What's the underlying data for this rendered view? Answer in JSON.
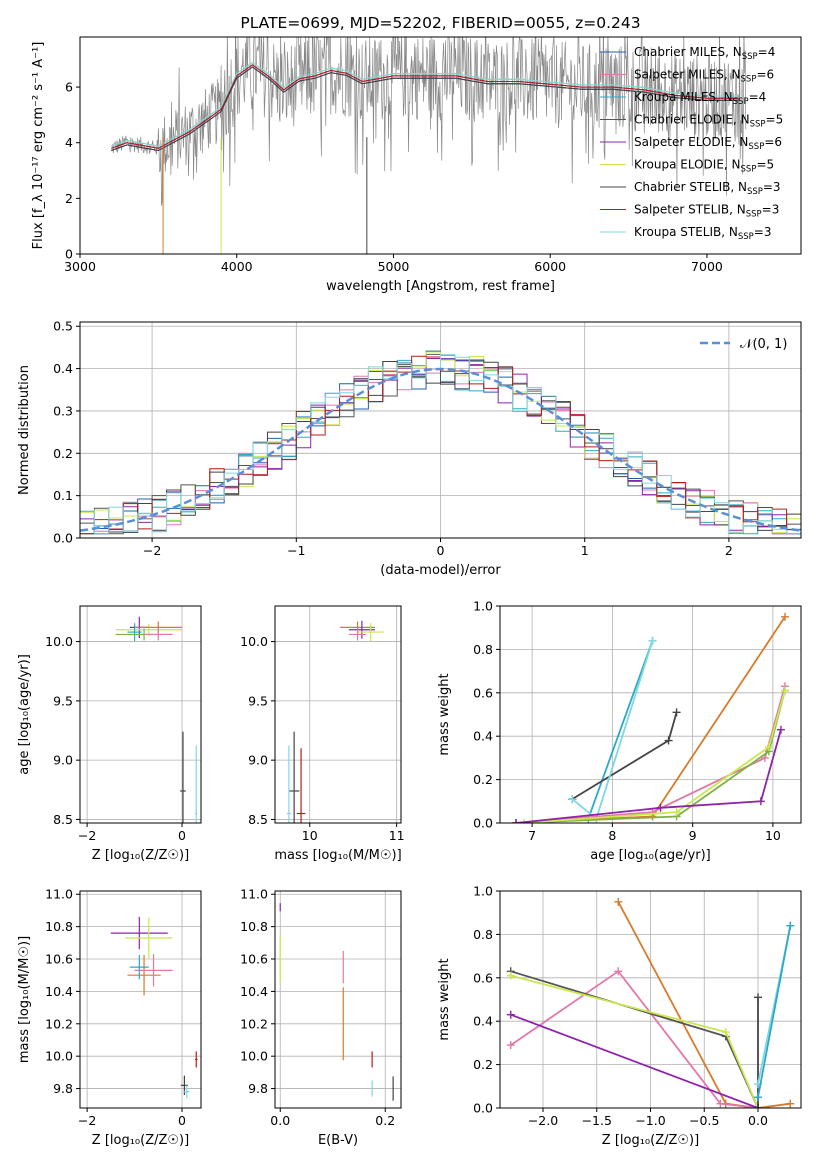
{
  "title": "PLATE=0699, MJD=52202, FIBERID=0055, z=0.243",
  "colors": {
    "Chabrier MILES": "#1f5fb4",
    "Salpeter MILES": "#e377a8",
    "Kroupa MILES": "#2ca9c8",
    "Chabrier ELODIE": "#555555",
    "Salpeter ELODIE": "#8e24aa",
    "Kroupa ELODIE": "#c8e84c",
    "Chabrier STELIB": "#444444",
    "Salpeter STELIB": "#b71c1c",
    "Kroupa STELIB": "#7fd8e0",
    "orange": "#d97a2b",
    "green": "#7cb342",
    "gauss": "#5b8ed8"
  },
  "chart_data": [
    {
      "id": "spectrum",
      "type": "line",
      "title": "PLATE=0699, MJD=52202, FIBERID=0055, z=0.243",
      "xlabel": "wavelength [Angstrom, rest frame]",
      "ylabel": "Flux [f_λ 10⁻¹⁷ erg cm⁻² s⁻¹ A⁻¹]",
      "xlim": [
        3000,
        7600
      ],
      "ylim": [
        0,
        7.8
      ],
      "xticks": [
        "3000",
        "4000",
        "5000",
        "6000",
        "7000"
      ],
      "yticks": [
        "0",
        "2",
        "4",
        "6"
      ],
      "legend_placement": "upper-right",
      "legend": [
        {
          "text": "Chabrier MILES, N",
          "sub": "SSP",
          "suffix": "=4"
        },
        {
          "text": "Salpeter MILES, N",
          "sub": "SSP",
          "suffix": "=6"
        },
        {
          "text": "Kroupa MILES, N",
          "sub": "SSP",
          "suffix": "=4"
        },
        {
          "text": "Chabrier ELODIE, N",
          "sub": "SSP",
          "suffix": "=5"
        },
        {
          "text": "Salpeter ELODIE, N",
          "sub": "SSP",
          "suffix": "=6"
        },
        {
          "text": "Kroupa ELODIE, N",
          "sub": "SSP",
          "suffix": "=5"
        },
        {
          "text": "Chabrier STELIB, N",
          "sub": "SSP",
          "suffix": "=3"
        },
        {
          "text": "Salpeter STELIB, N",
          "sub": "SSP",
          "suffix": "=3"
        },
        {
          "text": "Kroupa STELIB, N",
          "sub": "SSP",
          "suffix": "=3"
        }
      ],
      "model_x": [
        3200,
        3300,
        3400,
        3500,
        3600,
        3700,
        3800,
        3900,
        4000,
        4100,
        4200,
        4300,
        4400,
        4500,
        4600,
        4700,
        4800,
        4900,
        5000,
        5200,
        5400,
        5600,
        5800,
        6000,
        6200,
        6400,
        6600,
        6800,
        7000,
        7200
      ],
      "model_y": [
        3.8,
        4.0,
        3.9,
        3.8,
        4.1,
        4.4,
        4.8,
        5.2,
        6.4,
        6.8,
        6.4,
        5.9,
        6.3,
        6.4,
        6.6,
        6.5,
        6.2,
        6.3,
        6.4,
        6.4,
        6.4,
        6.2,
        6.2,
        6.1,
        6.0,
        6.0,
        5.9,
        5.7,
        5.6,
        5.6
      ]
    },
    {
      "id": "residuals",
      "type": "bar",
      "xlabel": "(data-model)/error",
      "ylabel": "Normed distribution",
      "xlim": [
        -2.5,
        2.5
      ],
      "ylim": [
        0,
        0.51
      ],
      "xticks": [
        "−2",
        "−1",
        "0",
        "1",
        "2"
      ],
      "yticks": [
        "0.0",
        "0.1",
        "0.2",
        "0.3",
        "0.4",
        "0.5"
      ],
      "legend": [
        "𝒩(0, 1)"
      ],
      "grid": true
    },
    {
      "id": "age_vs_Z",
      "type": "scatter",
      "xlabel": "Z [log₁₀(Z/Z☉)]",
      "ylabel": "age  [log₁₀(age/yr)]",
      "xlim": [
        -2.15,
        0.4
      ],
      "ylim": [
        8.47,
        10.3
      ],
      "xticks": [
        "−2",
        "0"
      ],
      "yticks": [
        "8.5",
        "9.0",
        "9.5",
        "10.0"
      ],
      "grid": true,
      "points": [
        {
          "x": -0.9,
          "y": 10.12,
          "xerr": 0.4,
          "yerr": 0.18,
          "c": "Salpeter ELODIE"
        },
        {
          "x": -0.7,
          "y": 10.1,
          "xerr": 1.4,
          "yerr": 0.1,
          "c": "Kroupa ELODIE"
        },
        {
          "x": -0.5,
          "y": 10.12,
          "xerr": 1.0,
          "yerr": 0.1,
          "c": "orange"
        },
        {
          "x": -1.0,
          "y": 10.08,
          "xerr": 0.3,
          "yerr": 0.15,
          "c": "Kroupa MILES"
        },
        {
          "x": -0.8,
          "y": 10.06,
          "xerr": 1.2,
          "yerr": 0.1,
          "c": "green"
        },
        {
          "x": -0.5,
          "y": 10.06,
          "xerr": 0.6,
          "yerr": 0.1,
          "c": "Salpeter MILES"
        },
        {
          "x": 0.02,
          "y": 8.74,
          "xerr": 0.12,
          "yerr": 1.0,
          "c": "Chabrier STELIB"
        },
        {
          "x": 0.3,
          "y": 8.55,
          "xerr": 0.05,
          "yerr": 1.15,
          "c": "Kroupa STELIB"
        }
      ]
    },
    {
      "id": "age_vs_mass",
      "type": "scatter",
      "xlabel": "mass [log₁₀(M/M☉)]",
      "ylabel": "",
      "xlim": [
        9.6,
        11.05
      ],
      "ylim": [
        8.47,
        10.3
      ],
      "xticks": [
        "10",
        "11"
      ],
      "yticks": [
        "8.5",
        "9.0",
        "9.5",
        "10.0"
      ],
      "grid": true,
      "points": [
        {
          "x": 10.55,
          "y": 10.12,
          "xerr": 0.4,
          "yerr": 0.1,
          "c": "orange"
        },
        {
          "x": 10.6,
          "y": 10.1,
          "xerr": 0.3,
          "yerr": 0.15,
          "c": "Salpeter ELODIE"
        },
        {
          "x": 10.7,
          "y": 10.08,
          "xerr": 0.3,
          "yerr": 0.15,
          "c": "Kroupa ELODIE"
        },
        {
          "x": 10.55,
          "y": 10.06,
          "xerr": 0.2,
          "yerr": 0.1,
          "c": "Salpeter MILES"
        },
        {
          "x": 9.82,
          "y": 8.74,
          "xerr": 0.12,
          "yerr": 1.0,
          "c": "Chabrier STELIB"
        },
        {
          "x": 9.9,
          "y": 8.55,
          "xerr": 0.1,
          "yerr": 1.1,
          "c": "Salpeter STELIB"
        },
        {
          "x": 9.76,
          "y": 8.55,
          "xerr": 0.05,
          "yerr": 1.15,
          "c": "Kroupa STELIB"
        }
      ]
    },
    {
      "id": "weight_vs_age",
      "type": "line",
      "xlabel": "age  [log₁₀(age/yr)]",
      "ylabel": "mass weight",
      "xlim": [
        6.6,
        10.35
      ],
      "ylim": [
        0,
        1.0
      ],
      "xticks": [
        "7",
        "8",
        "9",
        "10"
      ],
      "yticks": [
        "0.0",
        "0.2",
        "0.4",
        "0.6",
        "0.8",
        "1.0"
      ],
      "grid": true,
      "series": [
        {
          "c": "Kroupa MILES",
          "x": [
            7.7,
            8.5
          ],
          "y": [
            0.02,
            0.84
          ]
        },
        {
          "c": "Chabrier STELIB",
          "x": [
            7.5,
            8.7,
            8.8
          ],
          "y": [
            0.11,
            0.38,
            0.51
          ]
        },
        {
          "c": "Kroupa STELIB",
          "x": [
            7.5,
            7.8,
            8.5
          ],
          "y": [
            0.11,
            0.02,
            0.84
          ]
        },
        {
          "c": "orange",
          "x": [
            6.8,
            8.5,
            10.15
          ],
          "y": [
            0.0,
            0.03,
            0.95
          ]
        },
        {
          "c": "Salpeter MILES",
          "x": [
            6.8,
            8.5,
            9.9,
            10.15
          ],
          "y": [
            0.0,
            0.05,
            0.3,
            0.63
          ]
        },
        {
          "c": "green",
          "x": [
            6.8,
            8.8,
            9.95,
            10.15
          ],
          "y": [
            0.0,
            0.03,
            0.33,
            0.61
          ]
        },
        {
          "c": "Kroupa ELODIE",
          "x": [
            6.9,
            8.8,
            9.95,
            10.15
          ],
          "y": [
            0.0,
            0.05,
            0.35,
            0.61
          ]
        },
        {
          "c": "Salpeter ELODIE",
          "x": [
            6.8,
            8.6,
            9.85,
            10.1
          ],
          "y": [
            0.0,
            0.07,
            0.1,
            0.43
          ]
        }
      ]
    },
    {
      "id": "mass_vs_Z",
      "type": "scatter",
      "xlabel": "Z [log₁₀(Z/Z☉)]",
      "ylabel": "mass [log₁₀(M/M☉)]",
      "xlim": [
        -2.15,
        0.4
      ],
      "ylim": [
        9.68,
        11.02
      ],
      "xticks": [
        "−2",
        "0"
      ],
      "yticks": [
        "9.8",
        "10.0",
        "10.2",
        "10.4",
        "10.6",
        "10.8",
        "11.0"
      ],
      "grid": true,
      "points": [
        {
          "x": -0.9,
          "y": 10.76,
          "xerr": 1.2,
          "yerr": 0.2,
          "c": "Salpeter ELODIE"
        },
        {
          "x": -0.7,
          "y": 10.73,
          "xerr": 1.0,
          "yerr": 0.25,
          "c": "Kroupa ELODIE"
        },
        {
          "x": -0.8,
          "y": 10.5,
          "xerr": 0.7,
          "yerr": 0.25,
          "c": "orange"
        },
        {
          "x": -0.6,
          "y": 10.53,
          "xerr": 0.8,
          "yerr": 0.2,
          "c": "Salpeter MILES"
        },
        {
          "x": -0.9,
          "y": 10.55,
          "xerr": 0.4,
          "yerr": 0.15,
          "c": "Kroupa MILES"
        },
        {
          "x": 0.05,
          "y": 9.82,
          "xerr": 0.15,
          "yerr": 0.12,
          "c": "Chabrier STELIB"
        },
        {
          "x": 0.3,
          "y": 9.98,
          "xerr": 0.05,
          "yerr": 0.1,
          "c": "Salpeter STELIB"
        },
        {
          "x": 0.1,
          "y": 9.78,
          "xerr": 0.12,
          "yerr": 0.08,
          "c": "Kroupa STELIB"
        }
      ]
    },
    {
      "id": "mass_vs_ebv",
      "type": "scatter",
      "xlabel": "E(B-V)",
      "ylabel": "",
      "xlim": [
        -0.01,
        0.23
      ],
      "ylim": [
        9.68,
        11.02
      ],
      "xticks": [
        "0.0",
        "0.2"
      ],
      "yticks": [
        "9.8",
        "10.0",
        "10.2",
        "10.4",
        "10.6",
        "10.8",
        "11.0"
      ],
      "grid": true,
      "points": [
        {
          "x": 0.0,
          "y": 10.92,
          "xerr": 0.0,
          "yerr": 0.05,
          "c": "Salpeter ELODIE"
        },
        {
          "x": 0.0,
          "y": 10.6,
          "xerr": 0.0,
          "yerr": 0.3,
          "c": "Kroupa ELODIE"
        },
        {
          "x": 0.12,
          "y": 10.55,
          "xerr": 0.0,
          "yerr": 0.2,
          "c": "Salpeter MILES"
        },
        {
          "x": 0.12,
          "y": 10.2,
          "xerr": 0.0,
          "yerr": 0.45,
          "c": "orange"
        },
        {
          "x": 0.175,
          "y": 9.98,
          "xerr": 0.0,
          "yerr": 0.1,
          "c": "Salpeter STELIB"
        },
        {
          "x": 0.175,
          "y": 9.8,
          "xerr": 0.0,
          "yerr": 0.1,
          "c": "Kroupa STELIB"
        },
        {
          "x": 0.215,
          "y": 9.8,
          "xerr": 0.0,
          "yerr": 0.15,
          "c": "Chabrier STELIB"
        }
      ]
    },
    {
      "id": "weight_vs_Z",
      "type": "line",
      "xlabel": "Z [log₁₀(Z/Z☉)]",
      "ylabel": "mass weight",
      "xlim": [
        -2.4,
        0.4
      ],
      "ylim": [
        0,
        1.0
      ],
      "xticks": [
        "−2.0",
        "−1.5",
        "−1.0",
        "−0.5",
        "0.0"
      ],
      "yticks": [
        "0.0",
        "0.2",
        "0.4",
        "0.6",
        "0.8",
        "1.0"
      ],
      "grid": true,
      "series": [
        {
          "c": "orange",
          "x": [
            -1.3,
            -0.3,
            0.0,
            0.3
          ],
          "y": [
            0.95,
            0.02,
            0.0,
            0.02
          ]
        },
        {
          "c": "Salpeter MILES",
          "x": [
            -2.3,
            -1.3,
            -0.35,
            0.0
          ],
          "y": [
            0.29,
            0.63,
            0.02,
            0.0
          ]
        },
        {
          "c": "Chabrier ELODIE",
          "x": [
            -2.3,
            -0.3,
            0.0
          ],
          "y": [
            0.63,
            0.33,
            0.0
          ]
        },
        {
          "c": "Kroupa ELODIE",
          "x": [
            -2.3,
            -0.3,
            0.0
          ],
          "y": [
            0.61,
            0.35,
            0.0
          ]
        },
        {
          "c": "Salpeter ELODIE",
          "x": [
            -2.3,
            0.0
          ],
          "y": [
            0.43,
            0.0
          ]
        },
        {
          "c": "Chabrier STELIB",
          "x": [
            0.0,
            0.0
          ],
          "y": [
            0.51,
            0.0
          ]
        },
        {
          "c": "Kroupa STELIB",
          "x": [
            0.0,
            0.3
          ],
          "y": [
            0.11,
            0.84
          ]
        },
        {
          "c": "Kroupa MILES",
          "x": [
            0.0,
            0.3
          ],
          "y": [
            0.05,
            0.84
          ]
        }
      ]
    }
  ]
}
